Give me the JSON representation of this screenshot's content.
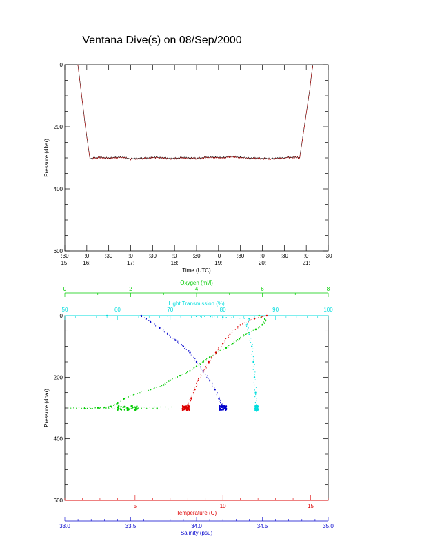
{
  "title": "Ventana Dive(s) on 08/Sep/2000",
  "colors": {
    "axis": "#000000",
    "pressure_trace": "#c00000",
    "oxygen": "#00cc00",
    "light": "#00dddd",
    "temperature": "#dd0000",
    "salinity": "#0000cc"
  },
  "chart_data": [
    {
      "type": "line",
      "title": "Ventana Dive(s) on 08/Sep/2000",
      "xlabel": "Time (UTC)",
      "ylabel": "Pressure (dbar)",
      "x_ticks_top": [
        ":30",
        ":0",
        ":30",
        ":0",
        ":30",
        ":0",
        ":30",
        ":0",
        ":30",
        ":0",
        ":30",
        ":0",
        ":30"
      ],
      "x_ticks_bottom": [
        "15:",
        "16:",
        "",
        "17:",
        "",
        "18:",
        "",
        "19:",
        "",
        "20:",
        "",
        "21:",
        ""
      ],
      "y_ticks": [
        "0",
        "200",
        "400",
        "600"
      ],
      "ylim": [
        0,
        600
      ],
      "xlim_hours": [
        15.5,
        21.5
      ],
      "series": [
        {
          "x_hours": [
            15.52,
            15.78,
            15.8,
            15.97,
            16.07,
            16.3,
            16.5,
            16.8,
            17.0,
            17.3,
            17.6,
            17.9,
            18.2,
            18.5,
            18.8,
            19.1,
            19.3,
            19.6,
            19.9,
            20.2,
            20.5,
            20.78,
            20.85,
            21.08,
            21.12,
            21.15
          ],
          "pressure_dbar": [
            0,
            0,
            2,
            200,
            302,
            298,
            300,
            297,
            303,
            301,
            298,
            302,
            299,
            301,
            297,
            299,
            295,
            300,
            301,
            302,
            299,
            297,
            300,
            80,
            30,
            2
          ]
        }
      ]
    },
    {
      "type": "scatter",
      "ylabel": "Pressure (dbar)",
      "y_ticks": [
        "0",
        "200",
        "400",
        "600"
      ],
      "ylim": [
        0,
        600
      ],
      "axes": {
        "oxygen": {
          "label": "Oxygen (ml/l)",
          "range": [
            0,
            8
          ],
          "ticks": [
            "0",
            "2",
            "4",
            "6",
            "8"
          ]
        },
        "light": {
          "label": "Light Transmission (%)",
          "range": [
            50,
            100
          ],
          "ticks": [
            "50",
            "60",
            "70",
            "80",
            "90",
            "100"
          ]
        },
        "temperature": {
          "label": "Temperature (C)",
          "range": [
            1,
            16
          ],
          "ticks": [
            "5",
            "10",
            "15"
          ]
        },
        "salinity": {
          "label": "Salinity (psu)",
          "range": [
            33.0,
            35.0
          ],
          "ticks": [
            "33.0",
            "33.5",
            "34.0",
            "34.5",
            "35.0"
          ]
        }
      },
      "series": [
        {
          "name": "Oxygen",
          "axis": "oxygen",
          "points": [
            [
              5.9,
              0
            ],
            [
              6.1,
              15
            ],
            [
              6.0,
              30
            ],
            [
              5.8,
              45
            ],
            [
              5.5,
              60
            ],
            [
              5.3,
              75
            ],
            [
              5.1,
              90
            ],
            [
              4.9,
              105
            ],
            [
              4.6,
              120
            ],
            [
              4.4,
              135
            ],
            [
              4.2,
              150
            ],
            [
              4.0,
              165
            ],
            [
              3.8,
              180
            ],
            [
              3.5,
              195
            ],
            [
              3.2,
              210
            ],
            [
              3.0,
              225
            ],
            [
              2.6,
              240
            ],
            [
              2.1,
              255
            ],
            [
              1.8,
              270
            ],
            [
              1.6,
              285
            ],
            [
              1.4,
              295
            ],
            [
              1.2,
              298
            ],
            [
              0.6,
              302
            ],
            [
              1.9,
              300
            ],
            [
              2.8,
              301
            ],
            [
              1.0,
              299
            ]
          ]
        },
        {
          "name": "Light Transmission",
          "axis": "light",
          "points": [
            [
              58,
              0
            ],
            [
              75,
              2
            ],
            [
              80,
              5
            ],
            [
              85,
              10
            ],
            [
              84.5,
              30
            ],
            [
              85,
              60
            ],
            [
              85.5,
              100
            ],
            [
              85.8,
              150
            ],
            [
              86,
              200
            ],
            [
              86.2,
              250
            ],
            [
              86.4,
              290
            ],
            [
              86.5,
              300
            ],
            [
              86.4,
              310
            ]
          ]
        },
        {
          "name": "Temperature",
          "axis": "temperature",
          "points": [
            [
              12.5,
              0
            ],
            [
              11.8,
              10
            ],
            [
              11.0,
              30
            ],
            [
              10.4,
              60
            ],
            [
              10.0,
              90
            ],
            [
              9.6,
              120
            ],
            [
              9.2,
              150
            ],
            [
              8.9,
              180
            ],
            [
              8.6,
              210
            ],
            [
              8.4,
              240
            ],
            [
              8.2,
              270
            ],
            [
              8.0,
              290
            ],
            [
              7.9,
              298
            ],
            [
              7.8,
              300
            ],
            [
              8.1,
              305
            ]
          ]
        },
        {
          "name": "Salinity",
          "axis": "salinity",
          "points": [
            [
              33.58,
              0
            ],
            [
              33.65,
              20
            ],
            [
              33.72,
              40
            ],
            [
              33.78,
              60
            ],
            [
              33.84,
              80
            ],
            [
              33.9,
              100
            ],
            [
              33.95,
              120
            ],
            [
              34.0,
              150
            ],
            [
              34.05,
              180
            ],
            [
              34.1,
              210
            ],
            [
              34.14,
              240
            ],
            [
              34.17,
              270
            ],
            [
              34.19,
              290
            ],
            [
              34.2,
              298
            ],
            [
              34.22,
              300
            ],
            [
              34.18,
              302
            ]
          ]
        }
      ]
    }
  ]
}
